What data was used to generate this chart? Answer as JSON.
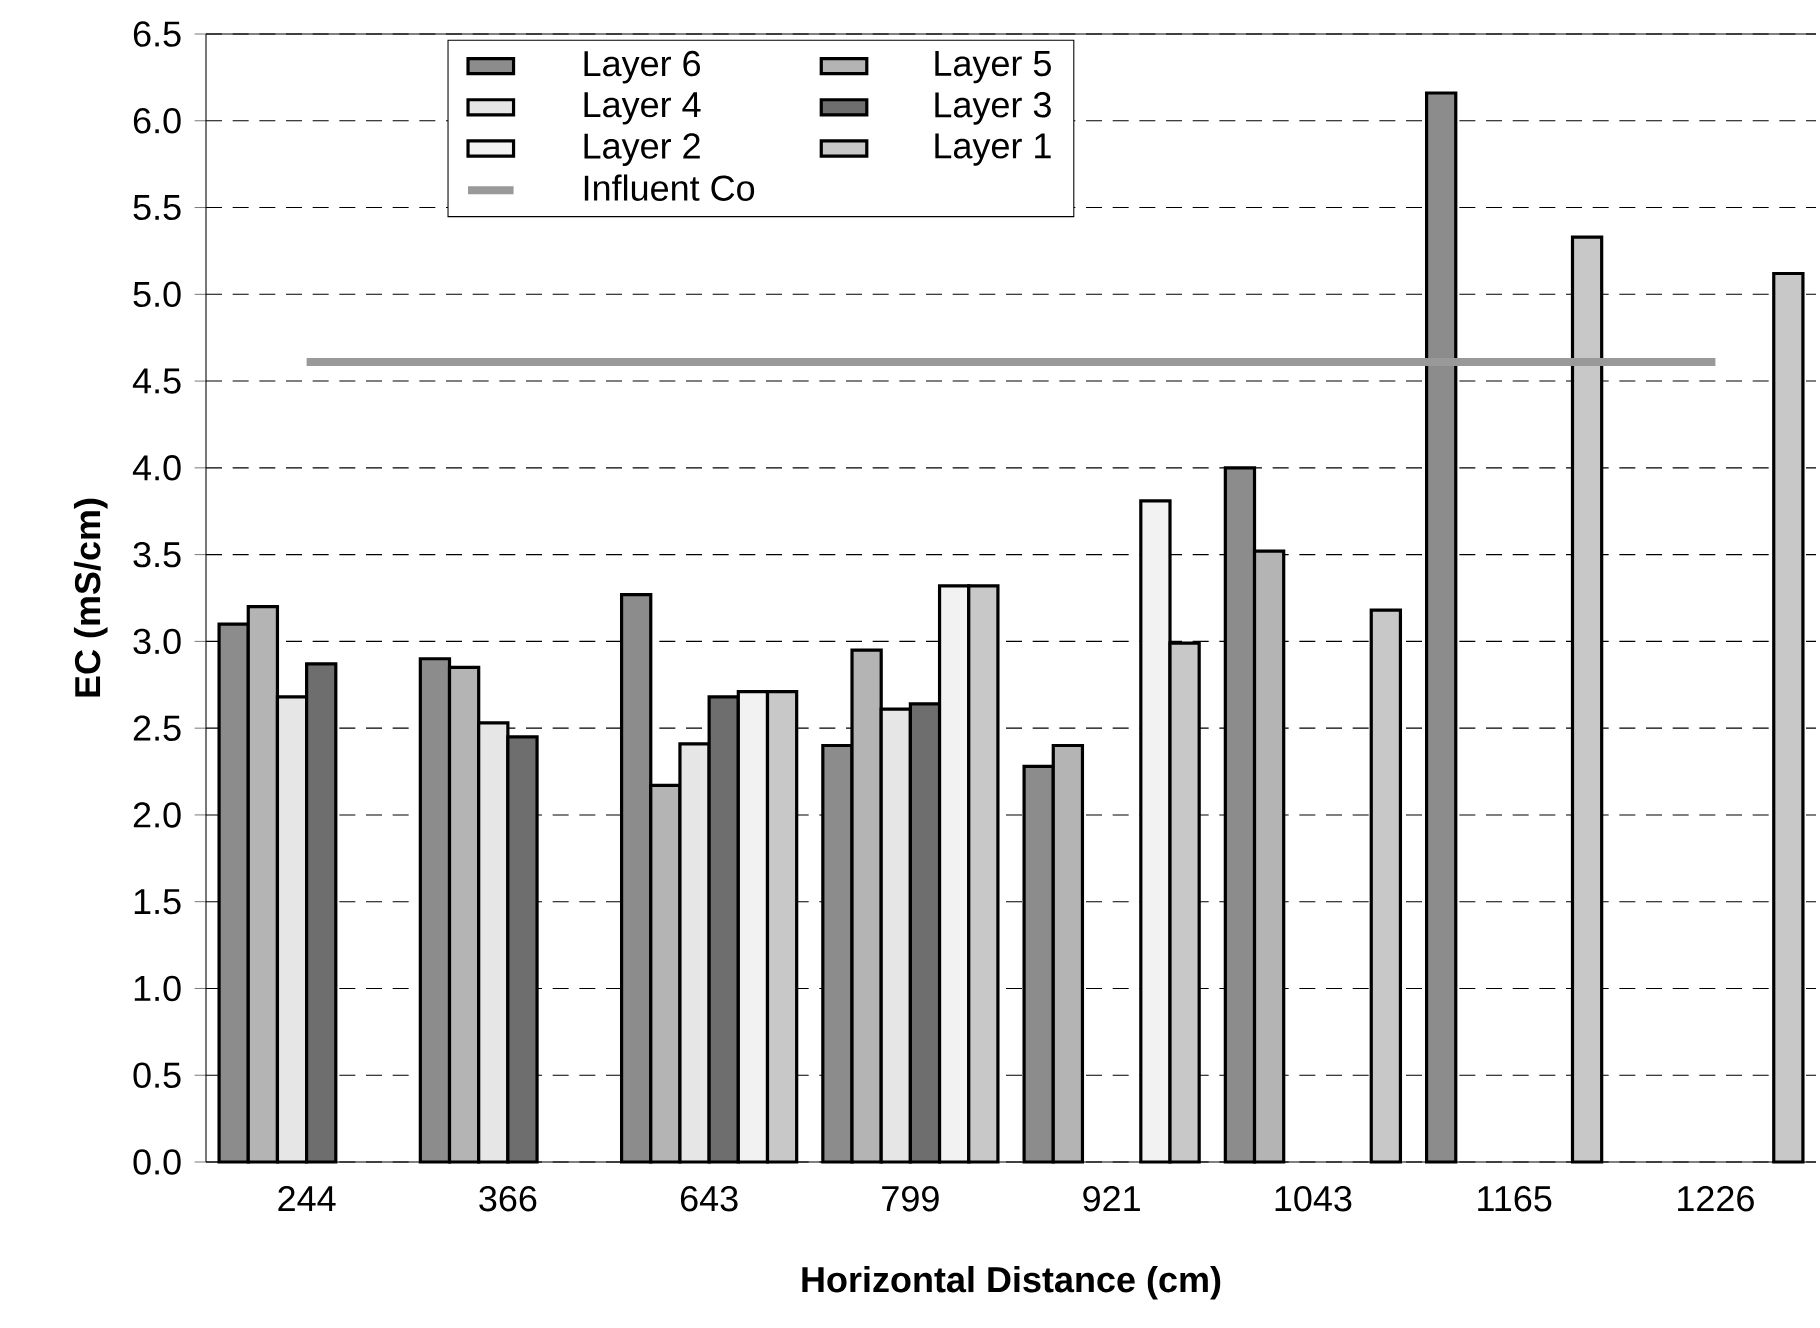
{
  "chart_data": {
    "type": "bar",
    "xlabel": "Horizontal Distance (cm)",
    "ylabel": "EC (mS/cm)",
    "categories": [
      "244",
      "366",
      "643",
      "799",
      "921",
      "1043",
      "1165",
      "1226"
    ],
    "series": [
      {
        "name": "Layer 6",
        "color": "#8c8c8c",
        "values": [
          3.1,
          2.9,
          3.27,
          2.4,
          2.28,
          4.0,
          6.16,
          null
        ]
      },
      {
        "name": "Layer 5",
        "color": "#b4b4b4",
        "values": [
          3.2,
          2.85,
          2.17,
          2.95,
          2.4,
          3.52,
          null,
          null
        ]
      },
      {
        "name": "Layer 4",
        "color": "#e6e6e6",
        "values": [
          2.68,
          2.53,
          2.41,
          2.61,
          null,
          null,
          null,
          null
        ]
      },
      {
        "name": "Layer 3",
        "color": "#6e6e6e",
        "values": [
          2.87,
          2.45,
          2.68,
          2.64,
          null,
          null,
          null,
          null
        ]
      },
      {
        "name": "Layer 2",
        "color": "#f2f2f2",
        "values": [
          null,
          null,
          2.71,
          3.32,
          3.81,
          null,
          null,
          null
        ]
      },
      {
        "name": "Layer 1",
        "color": "#c8c8c8",
        "values": [
          null,
          null,
          2.71,
          3.32,
          2.99,
          3.18,
          5.33,
          5.12
        ]
      },
      {
        "name": "Influent Co",
        "type": "line",
        "color": "#999999",
        "values": [
          4.61,
          4.61,
          4.61,
          4.61,
          4.61,
          4.61,
          4.61,
          4.61
        ]
      }
    ],
    "ylim": [
      0,
      6.5
    ],
    "yticks": [
      {
        "value": 0,
        "label": "0.0"
      },
      {
        "value": 0.5,
        "label": "0.5"
      },
      {
        "value": 1,
        "label": "1.0"
      },
      {
        "value": 1.5,
        "label": "1.5"
      },
      {
        "value": 2,
        "label": "2.0"
      },
      {
        "value": 2.5,
        "label": "2.5"
      },
      {
        "value": 3,
        "label": "3.0"
      },
      {
        "value": 3.5,
        "label": "3.5"
      },
      {
        "value": 4,
        "label": "4.0"
      },
      {
        "value": 4.5,
        "label": "4.5"
      },
      {
        "value": 5,
        "label": "5.0"
      },
      {
        "value": 5.5,
        "label": "5.5"
      },
      {
        "value": 6,
        "label": "6.0"
      },
      {
        "value": 6.5,
        "label": "6.5"
      }
    ],
    "grid": "y",
    "legend": "top"
  }
}
